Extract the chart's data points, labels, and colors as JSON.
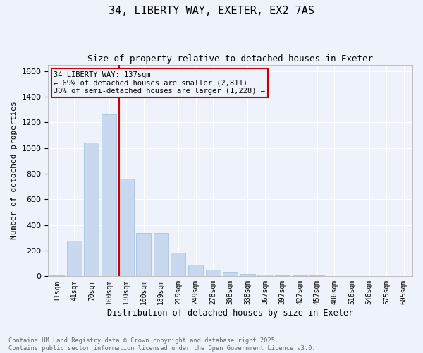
{
  "title_line1": "34, LIBERTY WAY, EXETER, EX2 7AS",
  "title_line2": "Size of property relative to detached houses in Exeter",
  "xlabel": "Distribution of detached houses by size in Exeter",
  "ylabel": "Number of detached properties",
  "bar_color": "#c8d8ee",
  "bar_edge_color": "#a0bcdc",
  "background_color": "#eef2fa",
  "grid_color": "#ffffff",
  "annotation_line_color": "#cc0000",
  "annotation_box_edge": "#cc0000",
  "categories": [
    "11sqm",
    "41sqm",
    "70sqm",
    "100sqm",
    "130sqm",
    "160sqm",
    "189sqm",
    "219sqm",
    "249sqm",
    "278sqm",
    "308sqm",
    "338sqm",
    "367sqm",
    "397sqm",
    "427sqm",
    "457sqm",
    "486sqm",
    "516sqm",
    "546sqm",
    "575sqm",
    "605sqm"
  ],
  "values": [
    5,
    275,
    1040,
    1265,
    760,
    335,
    335,
    185,
    90,
    50,
    35,
    20,
    15,
    10,
    5,
    5,
    2,
    2,
    1,
    1,
    1
  ],
  "annotation_line1": "34 LIBERTY WAY: 137sqm",
  "annotation_line2": "← 69% of detached houses are smaller (2,811)",
  "annotation_line3": "30% of semi-detached houses are larger (1,228) →",
  "vline_x_index": 4,
  "ylim": [
    0,
    1650
  ],
  "yticks": [
    0,
    200,
    400,
    600,
    800,
    1000,
    1200,
    1400,
    1600
  ],
  "footnote_line1": "Contains HM Land Registry data © Crown copyright and database right 2025.",
  "footnote_line2": "Contains public sector information licensed under the Open Government Licence v3.0."
}
